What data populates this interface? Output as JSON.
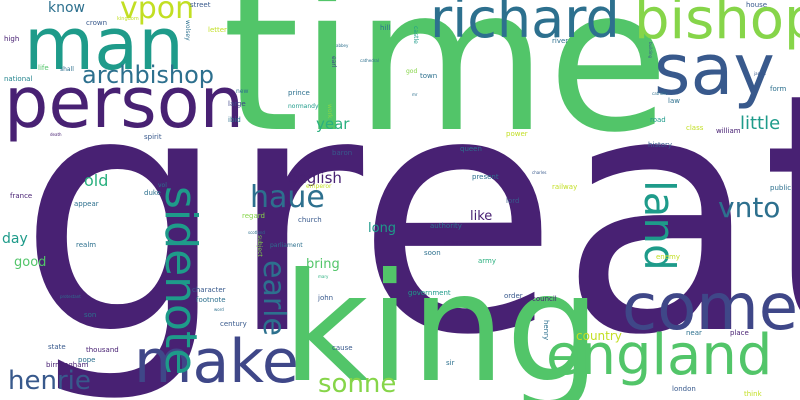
{
  "palette": {
    "purple": "#482173",
    "indigo": "#3f4788",
    "blue": "#38598c",
    "teal_blue": "#2d708e",
    "teal": "#25858e",
    "sea": "#1e9b8a",
    "green_teal": "#2ab07f",
    "green": "#52c569",
    "lime": "#86d549",
    "yellow_green": "#c2df23",
    "yellow": "#fde725"
  },
  "words": {
    "great": "great",
    "time": "time",
    "king": "king",
    "man": "man",
    "person": "person",
    "richard": "richard",
    "bishop": "bishop",
    "say": "say",
    "come": "come",
    "england": "england",
    "make": "make",
    "archbishop": "archbishop",
    "vpon": "vpon",
    "sidenote": "sidenote",
    "land": "land",
    "haue": "haue",
    "vnto": "vnto",
    "earle": "earle",
    "henrie": "henrie",
    "sonne": "sonne",
    "little": "little",
    "english": "english",
    "old": "old",
    "year": "year",
    "know": "know",
    "day": "day",
    "good": "good",
    "bring": "bring",
    "long": "long",
    "like": "like",
    "country": "country",
    "crown": "crown",
    "kingdom": "kingdom",
    "street": "street",
    "house": "house",
    "wolsey": "wolsey",
    "letter": "letter",
    "hill": "hill",
    "castle": "castle",
    "river": "river",
    "high": "high",
    "life": "life",
    "shall": "shall",
    "national": "national",
    "prince": "prince",
    "earl": "earl",
    "town": "town",
    "god": "god",
    "normandy": "normandy",
    "large": "large",
    "ibid": "ibid",
    "work": "work",
    "law": "law",
    "form": "form",
    "road": "road",
    "class": "class",
    "william": "william",
    "spirit": "spirit",
    "baron": "baron",
    "queen": "queen",
    "power": "power",
    "history": "history",
    "emperor": "emperor",
    "present": "present",
    "charles": "charles",
    "france": "france",
    "duke": "duke",
    "vol": "vol",
    "appear": "appear",
    "lord": "lord",
    "railway": "railway",
    "public": "public",
    "regard": "regard",
    "church": "church",
    "authority": "authority",
    "realm": "realm",
    "parliament": "parliament",
    "subject": "subject",
    "edward": "edward",
    "soon": "soon",
    "army": "army",
    "enemy": "enemy",
    "character": "character",
    "footnote": "footnote",
    "son": "son",
    "john": "john",
    "government": "government",
    "order": "order",
    "council": "council",
    "henry": "henry",
    "century": "century",
    "state": "state",
    "thousand": "thousand",
    "pope": "pope",
    "birmingham": "birmingham",
    "cause": "cause",
    "sir": "sir",
    "place": "place",
    "near": "near",
    "london": "london",
    "think": "think",
    "abbey": "abbey",
    "cathedral": "cathedral",
    "building": "building",
    "james": "james",
    "catholic": "catholic",
    "new": "new",
    "mr": "mr",
    "death": "death",
    "scotland": "scotland",
    "protestant": "protestant",
    "mary": "mary",
    "word": "word"
  }
}
